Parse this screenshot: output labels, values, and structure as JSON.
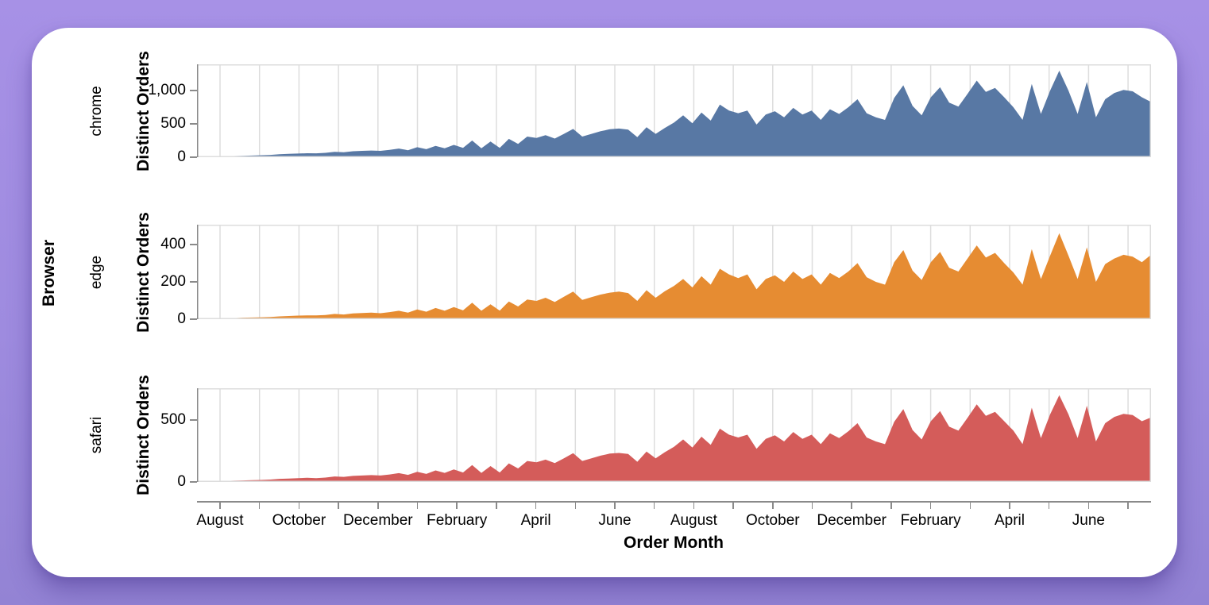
{
  "chart_data": {
    "type": "area",
    "layout": "faceted-rows",
    "row_title": "Browser",
    "x_title": "Order Month",
    "y_title": "Distinct Orders",
    "x_tick_labels": [
      "August",
      "October",
      "December",
      "February",
      "April",
      "June",
      "August",
      "October",
      "December",
      "February",
      "April",
      "June"
    ],
    "x_months_shown": 24,
    "x_points_per_series": 105,
    "grid": true,
    "colors": {
      "grid": "#dddddd",
      "border": "#dddddd",
      "axis": "#8a8a8a",
      "text": "#000000",
      "card": "#ffffff",
      "background": "#9e8bdf"
    },
    "facets": [
      {
        "label": "chrome",
        "color": "#5878a4",
        "y_ticks": [
          0,
          500,
          1000
        ],
        "y_tick_labels": [
          "0",
          "500",
          "1,000"
        ],
        "y_max": 1395,
        "values": [
          8,
          10,
          12,
          15,
          18,
          22,
          25,
          30,
          35,
          45,
          50,
          55,
          60,
          58,
          65,
          80,
          75,
          90,
          95,
          100,
          95,
          110,
          130,
          105,
          150,
          120,
          170,
          135,
          185,
          140,
          250,
          135,
          235,
          140,
          275,
          200,
          310,
          290,
          330,
          280,
          350,
          425,
          310,
          350,
          390,
          420,
          430,
          415,
          300,
          450,
          350,
          440,
          520,
          630,
          510,
          670,
          550,
          790,
          700,
          660,
          700,
          490,
          640,
          690,
          600,
          740,
          640,
          700,
          560,
          720,
          650,
          750,
          870,
          660,
          600,
          560,
          890,
          1080,
          770,
          630,
          900,
          1050,
          820,
          760,
          950,
          1150,
          980,
          1040,
          900,
          750,
          560,
          1100,
          650,
          1000,
          1300,
          1000,
          650,
          1130,
          600,
          870,
          965,
          1010,
          990,
          900,
          830
        ]
      },
      {
        "label": "edge",
        "color": "#e68c32",
        "y_ticks": [
          0,
          200,
          400
        ],
        "y_tick_labels": [
          "0",
          "200",
          "400"
        ],
        "y_max": 506,
        "values": [
          3,
          4,
          4,
          5,
          6,
          8,
          9,
          10,
          12,
          15,
          17,
          19,
          20,
          20,
          22,
          28,
          25,
          31,
          33,
          35,
          32,
          38,
          45,
          35,
          52,
          40,
          60,
          45,
          65,
          47,
          88,
          45,
          80,
          46,
          95,
          68,
          105,
          98,
          115,
          92,
          120,
          148,
          103,
          118,
          132,
          142,
          148,
          140,
          98,
          155,
          115,
          150,
          178,
          215,
          170,
          230,
          185,
          270,
          240,
          220,
          240,
          160,
          215,
          235,
          200,
          255,
          215,
          240,
          185,
          248,
          220,
          255,
          300,
          225,
          200,
          185,
          305,
          370,
          260,
          210,
          305,
          360,
          275,
          255,
          325,
          395,
          330,
          355,
          300,
          250,
          185,
          375,
          215,
          340,
          460,
          340,
          215,
          385,
          200,
          295,
          325,
          345,
          335,
          305,
          345
        ]
      },
      {
        "label": "safari",
        "color": "#d45c5a",
        "y_ticks": [
          0,
          500
        ],
        "y_tick_labels": [
          "0",
          "500"
        ],
        "y_max": 756,
        "values": [
          4,
          6,
          7,
          8,
          10,
          12,
          14,
          16,
          19,
          25,
          27,
          30,
          33,
          31,
          35,
          44,
          41,
          49,
          52,
          55,
          52,
          60,
          71,
          57,
          82,
          65,
          93,
          73,
          101,
          76,
          136,
          73,
          128,
          76,
          150,
          109,
          169,
          158,
          180,
          152,
          191,
          232,
          169,
          191,
          212,
          229,
          234,
          226,
          163,
          245,
          191,
          240,
          283,
          343,
          278,
          365,
          300,
          430,
          381,
          359,
          381,
          267,
          348,
          376,
          327,
          403,
          348,
          381,
          305,
          392,
          354,
          408,
          474,
          359,
          327,
          305,
          485,
          588,
          419,
          343,
          490,
          572,
          446,
          414,
          517,
          626,
          534,
          566,
          490,
          414,
          305,
          599,
          354,
          545,
          700,
          545,
          354,
          615,
          327,
          474,
          525,
          550,
          540,
          490,
          520
        ]
      }
    ]
  }
}
